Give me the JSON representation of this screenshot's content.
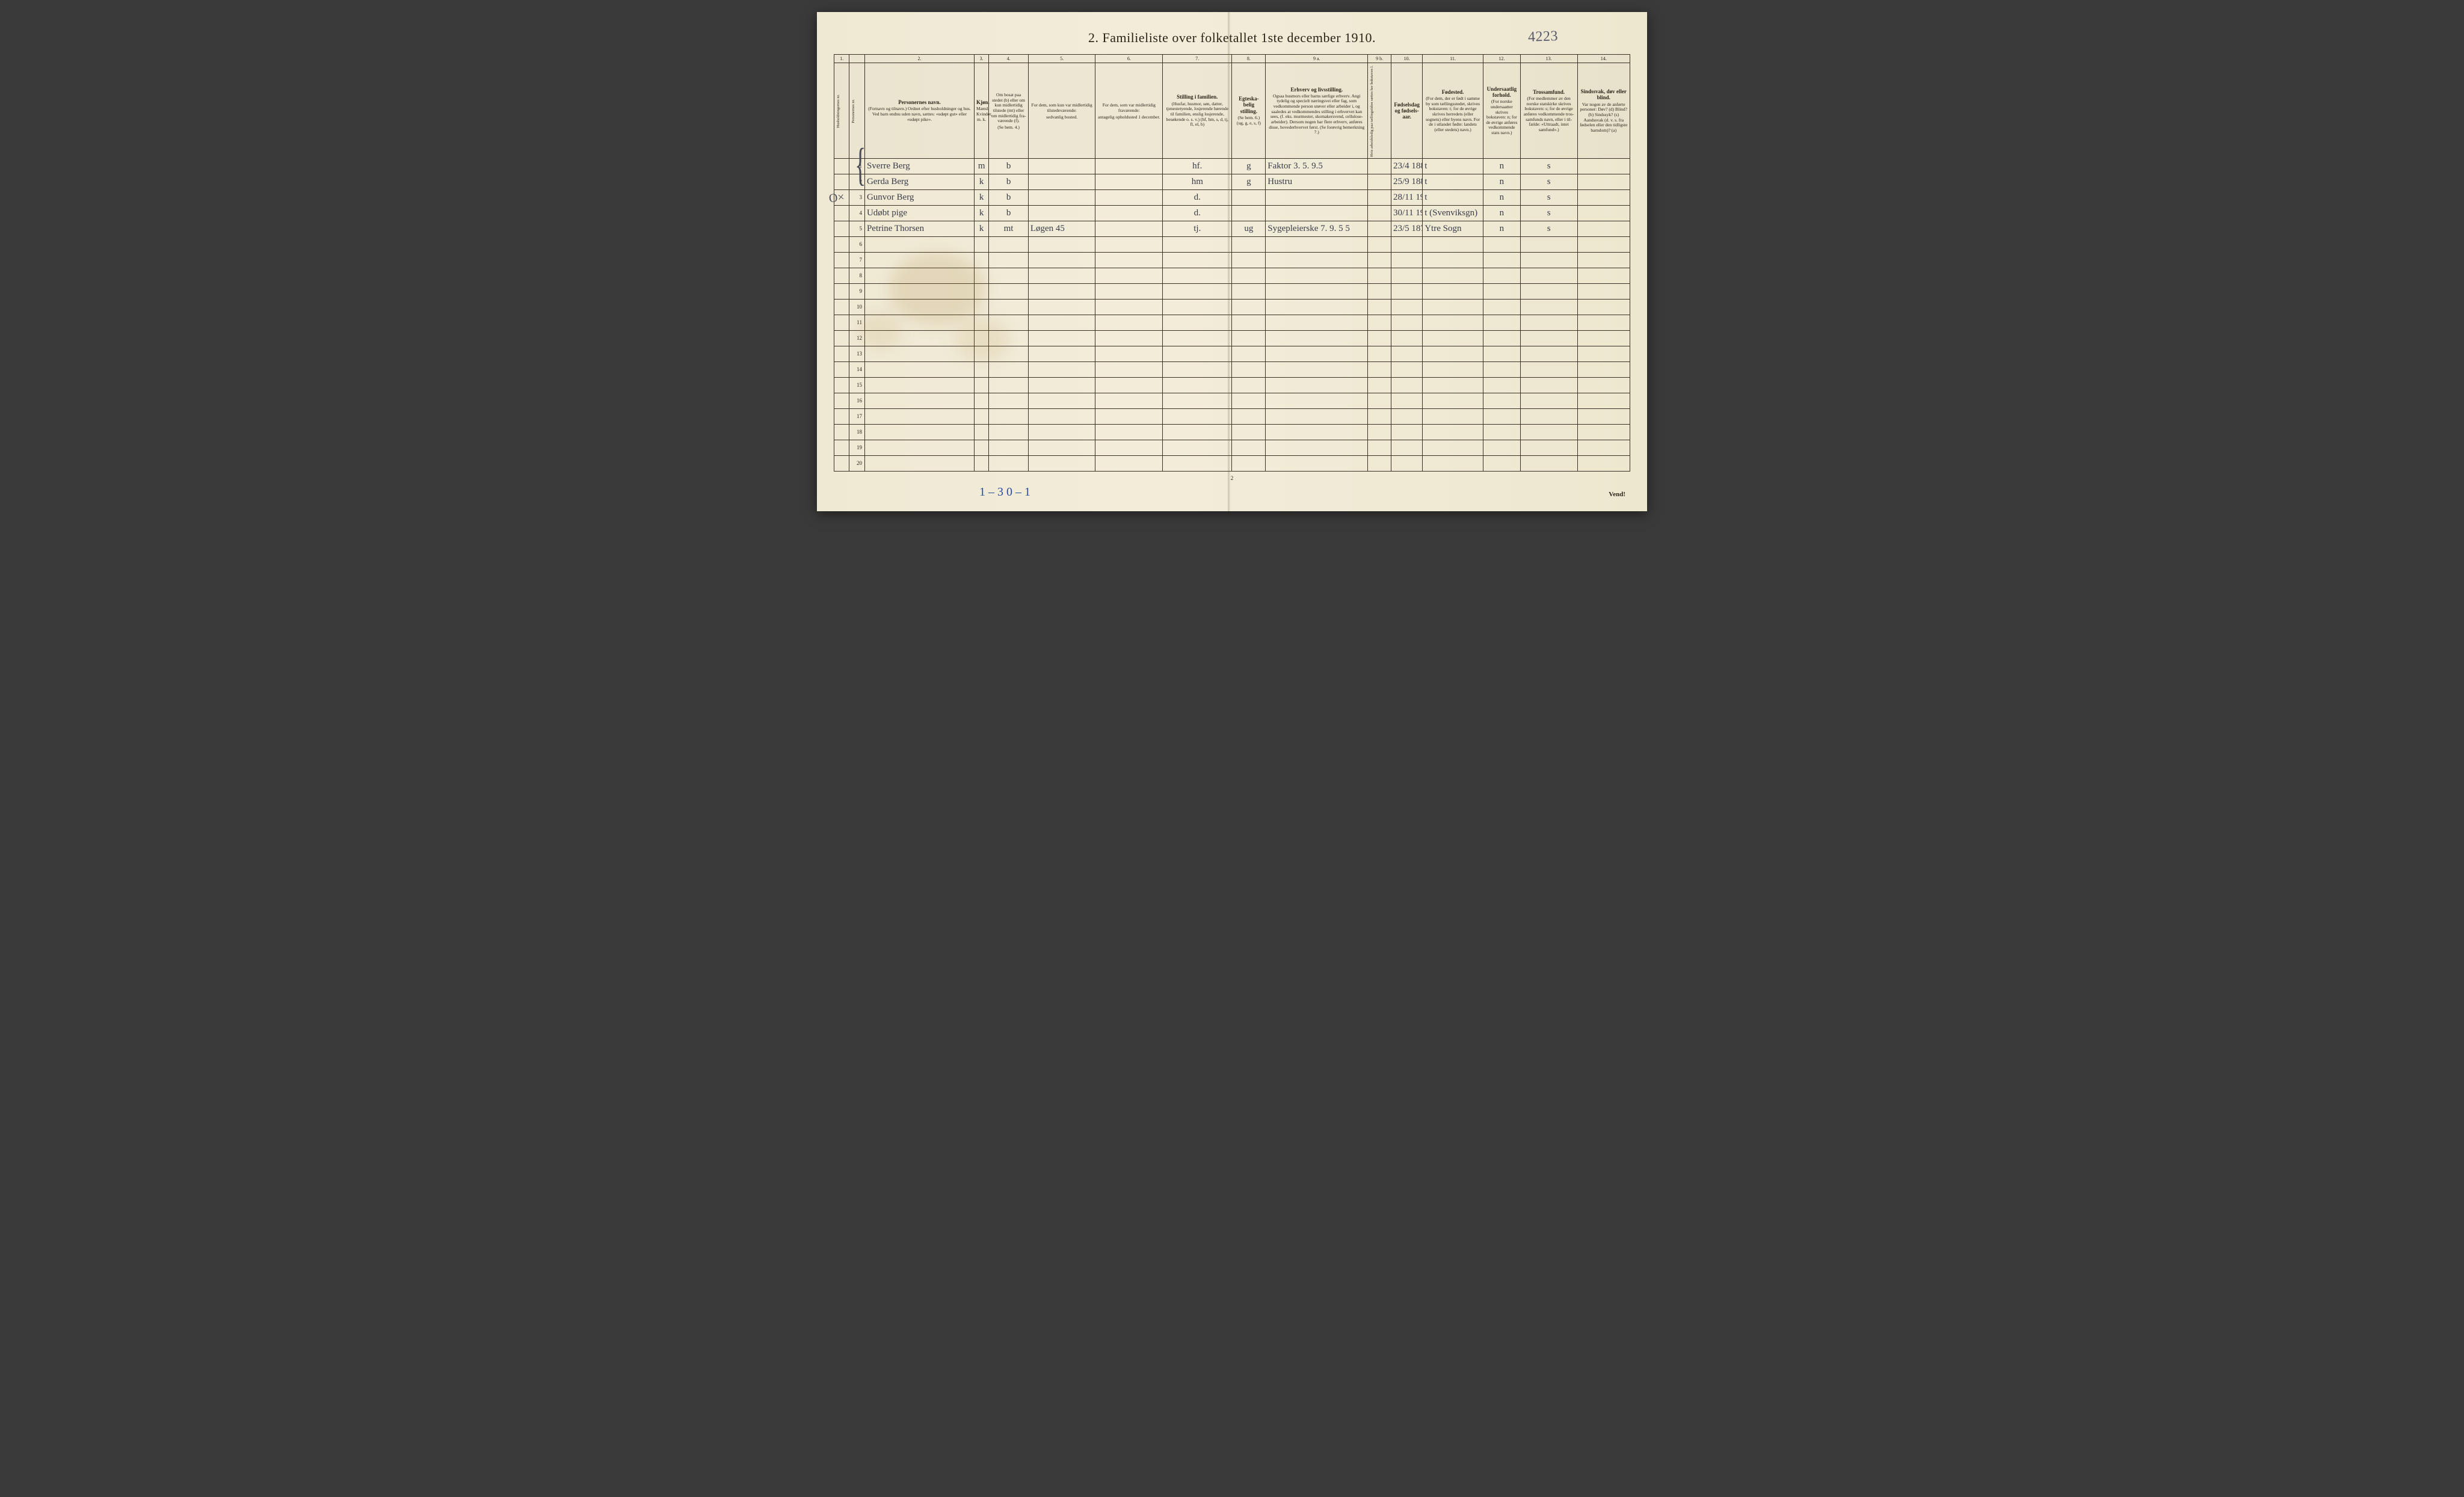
{
  "title": "2.   Familieliste over folketallet 1ste december 1910.",
  "title_annotation": "4223",
  "left_margin_note": "O×",
  "brace_glyph": "{",
  "footer_page_number": "2",
  "footer_handwrite": "1 – 3   0 – 1",
  "vend": "Vend!",
  "colors": {
    "paper": "#f0ead6",
    "ink": "#2a2418",
    "handwriting": "#3b3b48",
    "blue_pencil": "#2b4a9a",
    "border": "#3a3024"
  },
  "col_numbers": [
    "1.",
    "",
    "2.",
    "3.",
    "4.",
    "5.",
    "6.",
    "7.",
    "8.",
    "9 a.",
    "9 b.",
    "10.",
    "11.",
    "12.",
    "13.",
    "14."
  ],
  "col_widths_pct": [
    2.1,
    2.1,
    15.0,
    2.0,
    5.4,
    9.2,
    9.2,
    9.5,
    4.6,
    14.0,
    3.2,
    4.3,
    8.3,
    5.1,
    7.8,
    7.2
  ],
  "headers": {
    "c1": "Husholdningernes nr.",
    "c1b": "Personernes nr.",
    "c2_lbl": "Personernes navn.",
    "c2_sub": "(Fornavn og tilnavn.)\nOrdnet efter husholdninger og hus.\nVed barn endnu uden navn, sættes: «udøpt gut» eller «udøpt pike».",
    "c3_lbl": "Kjøn.",
    "c3_sub": "Mænd.  Kvinder.\nm.  k.",
    "c4_lbl": "Om bosat paa stedet (b) eller om kun midler­tidig tilstede (mt) eller om midler­tidig fra­værende (f).",
    "c4_sub": "(Se bem. 4.)",
    "c5_lbl": "For dem, som kun var midlertidig tilstede­værende:",
    "c5_sub": "sedvanlig bosted.",
    "c6_lbl": "For dem, som var midlertidig fraværende:",
    "c6_sub": "antagelig opholdssted 1 december.",
    "c7_lbl": "Stilling i familien.",
    "c7_sub": "(Husfar, husmor, søn, datter, tjenestetyende, lo­sjerende hørende til familien, enslig losjerende, besøkende o. s. v.)\n(hf, hm, s, d, tj, fl, el, b)",
    "c8_lbl": "Egteska­belig stilling.",
    "c8_sub": "(Se bem. 6.)\n(ug, g, e, s, f)",
    "c9a_lbl": "Erhverv og livsstilling.",
    "c9a_sub": "Ogsaa husmors eller barns særlige erhverv. Angi tydelig og specielt næringsvei eller fag, som vedkommende person utøver eller arbeider i, og saaledes at vedkommendes stilling i erhvervet kan sees, (f. eks. murmester, skomakersvend, cellulose­arbeider). Dersom nogen har flere erhverv, anføres disse, hovederhvervet først.\n(Se forøvrig bemerkning 7.)",
    "c9b_lbl": "Hvis arbeidsledig paa tællingstiden sættes her bokstaven l.",
    "c10_lbl": "Fødsels­dag og fødsels­aar.",
    "c11_lbl": "Fødested.",
    "c11_sub": "(For dem, der er født i samme by som tællingsstedet, skrives bokstaven: t; for de øvrige skrives herredets (eller sognets) eller byens navn. For de i utlandet fødte: landets (eller stedets) navn.)",
    "c12_lbl": "Undersaatlig forhold.",
    "c12_sub": "(For norske under­saatter skrives bokstaven: n; for de øvrige anføres vedkom­mende stats navn.)",
    "c13_lbl": "Trossamfund.",
    "c13_sub": "(For medlemmer av den norske statskirke skrives bokstaven: s; for de øvrige anføres vedkommende tros­samfunds navn, eller i til­fælde: «Uttraadt, intet samfund».)",
    "c14_lbl": "Sindssvak, døv eller blind.",
    "c14_sub": "Var nogen av de anførte personer:\nDøv?  (d)\nBlind?  (b)\nSindssyk?  (s)\nAandssvak (d. v. s. fra fødselen eller den tid­ligste barndom)?  (a)"
  },
  "rows": [
    {
      "n": "1",
      "name": "Sverre Berg",
      "sex": "m",
      "res": "b",
      "c5": "",
      "c6": "",
      "fam": "hf.",
      "mar": "g",
      "occ": "Faktor  3. 5.  9.5",
      "c9b": "",
      "dob": "23/4 1881",
      "birthpl": "t",
      "nat": "n",
      "rel": "s",
      "c14": ""
    },
    {
      "n": "2",
      "name": "Gerda Berg",
      "sex": "k",
      "res": "b",
      "c5": "",
      "c6": "",
      "fam": "hm",
      "mar": "g",
      "occ": "Hustru",
      "c9b": "",
      "dob": "25/9 1885",
      "birthpl": "t",
      "nat": "n",
      "rel": "s",
      "c14": ""
    },
    {
      "n": "3",
      "name": "Gunvor Berg",
      "sex": "k",
      "res": "b",
      "c5": "",
      "c6": "",
      "fam": "d.",
      "mar": "",
      "occ": "",
      "c9b": "",
      "dob": "28/11 1908",
      "birthpl": "t",
      "nat": "n",
      "rel": "s",
      "c14": ""
    },
    {
      "n": "4",
      "name": "Udøbt pige",
      "sex": "k",
      "res": "b",
      "c5": "",
      "c6": "",
      "fam": "d.",
      "mar": "",
      "occ": "",
      "c9b": "",
      "dob": "30/11 1910",
      "birthpl": "t  (Svenviksgn)",
      "nat": "n",
      "rel": "s",
      "c14": ""
    },
    {
      "n": "5",
      "name": "Petrine Thorsen",
      "sex": "k",
      "res": "mt",
      "c5": "Løgen 45",
      "c6": "",
      "fam": "tj.",
      "mar": "ug",
      "occ": "Sygepleierske  7. 9. 5 5",
      "c9b": "",
      "dob": "23/5 1873",
      "birthpl": "Ytre Sogn",
      "nat": "n",
      "rel": "s",
      "c14": ""
    },
    {
      "n": "6"
    },
    {
      "n": "7"
    },
    {
      "n": "8"
    },
    {
      "n": "9"
    },
    {
      "n": "10"
    },
    {
      "n": "11"
    },
    {
      "n": "12"
    },
    {
      "n": "13"
    },
    {
      "n": "14"
    },
    {
      "n": "15"
    },
    {
      "n": "16"
    },
    {
      "n": "17"
    },
    {
      "n": "18"
    },
    {
      "n": "19"
    },
    {
      "n": "20"
    }
  ]
}
